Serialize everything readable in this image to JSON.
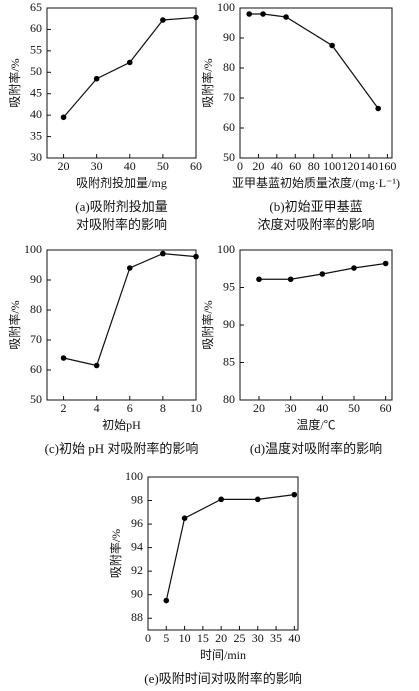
{
  "chart_data": [
    {
      "type": "line",
      "x": [
        20,
        30,
        40,
        50,
        60
      ],
      "values": [
        39.5,
        48.5,
        52.3,
        62.2,
        62.8
      ],
      "color": "#000000",
      "xlim": [
        15,
        60
      ],
      "ylim": [
        30,
        65
      ],
      "xticks": [
        20,
        30,
        40,
        50,
        60
      ],
      "yticks": [
        30,
        35,
        40,
        45,
        50,
        55,
        60,
        65
      ],
      "xlabel": "吸附剂投加量/mg",
      "ylabel": "吸附率/%",
      "caption": [
        "(a)吸附剂投加量",
        "对吸附率的影响"
      ]
    },
    {
      "type": "line",
      "x": [
        10,
        25,
        50,
        100,
        150
      ],
      "values": [
        98,
        98,
        97,
        87.5,
        66.5
      ],
      "color": "#000000",
      "xlim": [
        0,
        165
      ],
      "ylim": [
        50,
        100
      ],
      "xticks": [
        0,
        20,
        40,
        60,
        80,
        100,
        120,
        140,
        160
      ],
      "yticks": [
        50,
        60,
        70,
        80,
        90,
        100
      ],
      "xlabel": "亚甲基蓝初始质量浓度/(mg·L⁻¹)",
      "ylabel": "吸附率/%",
      "caption": [
        "(b)初始亚甲基蓝",
        "浓度对吸附率的影响"
      ]
    },
    {
      "type": "line",
      "x": [
        2,
        4,
        6,
        8,
        10
      ],
      "values": [
        64,
        61.5,
        94,
        98.8,
        97.8
      ],
      "color": "#000000",
      "xlim": [
        1,
        10
      ],
      "ylim": [
        50,
        100
      ],
      "xticks": [
        2,
        4,
        6,
        8,
        10
      ],
      "yticks": [
        50,
        60,
        70,
        80,
        90,
        100
      ],
      "xlabel": "初始pH",
      "ylabel": "吸附率/%",
      "caption": [
        "(c)初始 pH 对吸附率的影响"
      ]
    },
    {
      "type": "line",
      "x": [
        20,
        30,
        40,
        50,
        60
      ],
      "values": [
        96.1,
        96.1,
        96.8,
        97.6,
        98.2
      ],
      "color": "#000000",
      "xlim": [
        14,
        62
      ],
      "ylim": [
        80,
        100
      ],
      "xticks": [
        20,
        30,
        40,
        50,
        60
      ],
      "yticks": [
        80,
        85,
        90,
        95,
        100
      ],
      "xlabel": "温度/℃",
      "ylabel": "吸附率/%",
      "caption": [
        "(d)温度对吸附率的影响"
      ]
    },
    {
      "type": "line",
      "x": [
        5,
        10,
        20,
        30,
        40
      ],
      "values": [
        89.5,
        96.5,
        98.1,
        98.1,
        98.5
      ],
      "color": "#000000",
      "xlim": [
        0,
        41
      ],
      "ylim": [
        87,
        100
      ],
      "xticks": [
        0,
        5,
        10,
        15,
        20,
        25,
        30,
        35,
        40
      ],
      "yticks": [
        88,
        90,
        92,
        94,
        96,
        98,
        100
      ],
      "xlabel": "时间/min",
      "ylabel": "吸附率/%",
      "caption": [
        "(e)吸附时间对吸附率的影响"
      ]
    }
  ]
}
